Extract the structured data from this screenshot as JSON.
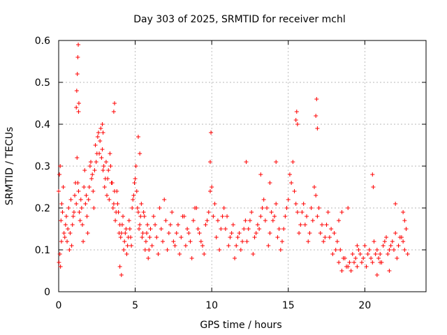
{
  "chart_data": {
    "type": "scatter",
    "title": "Day 303 of 2025, SRMTID for receiver mchl",
    "xlabel": "GPS time / hours",
    "ylabel": "SRMTID / TECUs",
    "xlim": [
      0,
      24
    ],
    "ylim": [
      0,
      0.6
    ],
    "xticks": [
      0,
      5,
      10,
      15,
      20
    ],
    "xtick_labels": [
      "0",
      "5",
      "10",
      "15",
      "20"
    ],
    "yticks": [
      0,
      0.1,
      0.2,
      0.3,
      0.4,
      0.5,
      0.6
    ],
    "ytick_labels": [
      "0",
      "0.1",
      "0.2",
      "0.3",
      "0.4",
      "0.5",
      "0.6"
    ],
    "grid": true,
    "marker": "+",
    "color": "#ff0000",
    "series": [
      {
        "name": "SRMTID",
        "x": [
          0.0,
          0.1,
          0.2,
          0.3,
          0.4,
          0.5,
          0.6,
          0.7,
          0.8,
          0.9,
          1.0,
          1.1,
          1.2,
          1.3,
          1.4,
          1.5,
          1.6,
          1.7,
          1.8,
          1.9,
          2.0,
          2.1,
          2.2,
          2.3,
          2.4,
          2.5,
          2.6,
          2.7,
          2.8,
          2.9,
          3.0,
          3.1,
          3.2,
          3.3,
          3.4,
          3.5,
          3.6,
          3.7,
          3.8,
          3.9,
          4.0,
          4.1,
          4.2,
          4.3,
          4.4,
          4.5,
          4.6,
          4.7,
          4.8,
          4.9,
          5.0,
          5.1,
          5.2,
          5.3,
          5.4,
          5.5,
          5.6,
          5.7,
          5.8,
          5.9,
          6.0,
          6.2,
          6.4,
          6.6,
          6.8,
          7.0,
          7.2,
          7.4,
          7.6,
          7.8,
          8.0,
          8.2,
          8.4,
          8.6,
          8.8,
          9.0,
          9.2,
          9.4,
          9.6,
          9.8,
          10.0,
          10.2,
          10.4,
          10.6,
          10.8,
          11.0,
          11.2,
          11.4,
          11.6,
          11.8,
          12.0,
          12.2,
          12.4,
          12.6,
          12.8,
          13.0,
          13.2,
          13.4,
          13.6,
          13.8,
          14.0,
          14.2,
          14.4,
          14.6,
          14.8,
          15.0,
          15.2,
          15.4,
          15.6,
          15.8,
          16.0,
          16.2,
          16.4,
          16.6,
          16.8,
          17.0,
          17.2,
          17.4,
          17.6,
          17.8,
          18.0,
          18.2,
          18.4,
          18.6,
          18.8,
          19.0,
          19.2,
          19.4,
          19.6,
          19.8,
          20.0,
          20.2,
          20.4,
          20.6,
          20.8,
          21.0,
          21.2,
          21.4,
          21.6,
          21.8,
          22.0,
          22.2,
          22.4,
          22.6,
          22.8,
          0.05,
          0.15,
          0.25,
          0.35,
          0.45,
          0.55,
          0.65,
          0.75,
          0.85,
          0.95,
          1.05,
          1.15,
          1.25,
          1.35,
          1.45,
          1.55,
          1.65,
          1.75,
          1.85,
          1.95,
          2.05,
          2.15,
          2.25,
          2.35,
          2.45,
          2.55,
          2.65,
          2.75,
          2.85,
          2.95,
          3.05,
          3.15,
          3.25,
          3.35,
          3.45,
          3.55,
          3.65,
          3.75,
          3.85,
          3.95,
          4.05,
          4.15,
          4.25,
          4.35,
          4.45,
          4.55,
          4.65,
          4.75,
          4.85,
          4.95,
          5.05,
          5.15,
          5.25,
          5.35,
          5.45,
          5.55,
          5.65,
          5.75,
          5.85,
          5.95,
          6.1,
          6.3,
          6.5,
          6.7,
          6.9,
          7.1,
          7.3,
          7.5,
          7.7,
          7.9,
          8.1,
          8.3,
          8.5,
          8.7,
          8.9,
          9.1,
          9.3,
          9.5,
          9.7,
          9.9,
          10.1,
          10.3,
          10.5,
          10.7,
          10.9,
          11.1,
          11.3,
          11.5,
          11.7,
          11.9,
          12.1,
          12.3,
          12.5,
          12.7,
          12.9,
          13.1,
          13.3,
          13.5,
          13.7,
          13.9,
          14.1,
          14.3,
          14.5,
          14.7,
          14.9,
          15.1,
          15.3,
          15.5,
          15.7,
          15.9,
          16.1,
          16.3,
          16.5,
          16.7,
          16.9,
          17.1,
          17.3,
          17.5,
          17.7,
          17.9,
          18.1,
          18.3,
          18.5,
          18.7,
          18.9,
          19.1,
          19.3,
          19.5,
          19.7,
          19.9,
          20.1,
          20.3,
          20.5,
          20.7,
          20.9,
          21.1,
          21.3,
          21.5,
          21.7,
          21.9,
          22.1,
          22.3,
          22.5,
          22.7,
          0.02,
          0.08,
          0.12,
          0.18,
          1.15,
          1.18,
          1.22,
          1.25,
          1.28,
          1.3,
          1.32,
          2.85,
          2.9,
          3.6,
          3.65,
          4.0,
          4.1,
          5.2,
          5.3,
          9.9,
          9.95,
          15.5,
          15.55,
          15.6,
          16.8,
          16.85,
          16.9,
          20.5,
          20.55,
          21.0,
          22.0,
          22.5,
          22.6,
          12.25,
          13.2,
          13.8,
          14.2,
          18.3,
          18.5,
          18.9,
          19.5,
          20.8,
          21.6
        ],
        "y": [
          0.24,
          0.3,
          0.21,
          0.25,
          0.13,
          0.18,
          0.15,
          0.1,
          0.22,
          0.16,
          0.19,
          0.26,
          0.32,
          0.24,
          0.17,
          0.2,
          0.12,
          0.29,
          0.23,
          0.14,
          0.25,
          0.31,
          0.28,
          0.2,
          0.35,
          0.33,
          0.38,
          0.36,
          0.32,
          0.29,
          0.25,
          0.31,
          0.27,
          0.22,
          0.3,
          0.26,
          0.21,
          0.17,
          0.24,
          0.19,
          0.16,
          0.14,
          0.18,
          0.12,
          0.15,
          0.11,
          0.17,
          0.13,
          0.2,
          0.23,
          0.27,
          0.24,
          0.19,
          0.16,
          0.21,
          0.14,
          0.18,
          0.12,
          0.16,
          0.1,
          0.15,
          0.18,
          0.13,
          0.2,
          0.12,
          0.17,
          0.14,
          0.19,
          0.11,
          0.16,
          0.13,
          0.18,
          0.15,
          0.12,
          0.17,
          0.2,
          0.14,
          0.11,
          0.16,
          0.19,
          0.25,
          0.21,
          0.17,
          0.15,
          0.2,
          0.18,
          0.13,
          0.16,
          0.11,
          0.14,
          0.12,
          0.17,
          0.15,
          0.19,
          0.13,
          0.16,
          0.18,
          0.22,
          0.2,
          0.14,
          0.17,
          0.21,
          0.15,
          0.12,
          0.18,
          0.22,
          0.26,
          0.24,
          0.19,
          0.16,
          0.21,
          0.18,
          0.14,
          0.17,
          0.23,
          0.2,
          0.16,
          0.13,
          0.19,
          0.15,
          0.14,
          0.12,
          0.1,
          0.08,
          0.06,
          0.07,
          0.09,
          0.08,
          0.1,
          0.07,
          0.11,
          0.09,
          0.08,
          0.12,
          0.1,
          0.09,
          0.11,
          0.13,
          0.1,
          0.12,
          0.14,
          0.11,
          0.13,
          0.1,
          0.09,
          0.28,
          0.17,
          0.19,
          0.14,
          0.16,
          0.12,
          0.2,
          0.14,
          0.11,
          0.18,
          0.23,
          0.21,
          0.26,
          0.19,
          0.22,
          0.16,
          0.25,
          0.21,
          0.18,
          0.22,
          0.3,
          0.27,
          0.24,
          0.29,
          0.31,
          0.37,
          0.33,
          0.39,
          0.34,
          0.3,
          0.27,
          0.23,
          0.29,
          0.33,
          0.26,
          0.2,
          0.24,
          0.19,
          0.21,
          0.14,
          0.13,
          0.16,
          0.1,
          0.14,
          0.09,
          0.13,
          0.15,
          0.11,
          0.22,
          0.26,
          0.3,
          0.2,
          0.15,
          0.18,
          0.13,
          0.19,
          0.1,
          0.14,
          0.08,
          0.13,
          0.11,
          0.16,
          0.09,
          0.15,
          0.22,
          0.1,
          0.16,
          0.12,
          0.14,
          0.09,
          0.18,
          0.11,
          0.14,
          0.08,
          0.2,
          0.15,
          0.12,
          0.09,
          0.17,
          0.24,
          0.18,
          0.13,
          0.1,
          0.18,
          0.15,
          0.11,
          0.14,
          0.08,
          0.13,
          0.1,
          0.15,
          0.12,
          0.17,
          0.09,
          0.14,
          0.15,
          0.2,
          0.17,
          0.11,
          0.19,
          0.18,
          0.13,
          0.1,
          0.15,
          0.2,
          0.28,
          0.31,
          0.21,
          0.14,
          0.19,
          0.16,
          0.12,
          0.2,
          0.25,
          0.18,
          0.14,
          0.12,
          0.16,
          0.13,
          0.09,
          0.1,
          0.07,
          0.05,
          0.08,
          0.06,
          0.05,
          0.07,
          0.06,
          0.09,
          0.08,
          0.06,
          0.1,
          0.07,
          0.09,
          0.08,
          0.07,
          0.12,
          0.09,
          0.11,
          0.1,
          0.08,
          0.13,
          0.12,
          0.15,
          0.07,
          0.09,
          0.06,
          0.12,
          0.44,
          0.48,
          0.52,
          0.56,
          0.59,
          0.43,
          0.45,
          0.4,
          0.38,
          0.43,
          0.45,
          0.06,
          0.04,
          0.37,
          0.33,
          0.31,
          0.38,
          0.41,
          0.43,
          0.4,
          0.42,
          0.46,
          0.39,
          0.28,
          0.25,
          0.07,
          0.21,
          0.19,
          0.17,
          0.31,
          0.28,
          0.26,
          0.31,
          0.17,
          0.19,
          0.2,
          0.11,
          0.04,
          0.05
        ]
      }
    ]
  }
}
